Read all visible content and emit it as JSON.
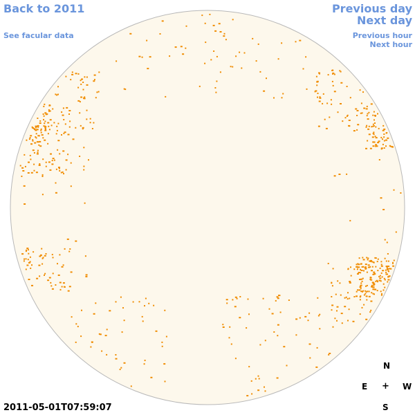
{
  "nav": {
    "back": "Back to 2011",
    "facular": "See facular data",
    "prev_day": "Previous day",
    "next_day": "Next day",
    "prev_hour": "Previous hour",
    "next_hour": "Next hour"
  },
  "timestamp": "2011-05-01T07:59:07",
  "compass": {
    "north": "N",
    "south": "S",
    "east": "E",
    "west": "W",
    "center": "+"
  },
  "colors": {
    "disk_fill": "#fdf8ec",
    "disk_stroke": "#b8b8b8",
    "facula": "#f08c00",
    "link": "#6a95dc"
  },
  "facula_regions": [
    {
      "lat": 0.45,
      "lon": -0.92,
      "spread": 0.12,
      "count": 140
    },
    {
      "lat": 0.3,
      "lon": -0.85,
      "spread": 0.14,
      "count": 90
    },
    {
      "lat": 0.55,
      "lon": -0.7,
      "spread": 0.15,
      "count": 70
    },
    {
      "lat": 0.4,
      "lon": 0.9,
      "spread": 0.1,
      "count": 110
    },
    {
      "lat": 0.55,
      "lon": 0.7,
      "spread": 0.16,
      "count": 70
    },
    {
      "lat": -0.35,
      "lon": 0.85,
      "spread": 0.1,
      "count": 150
    },
    {
      "lat": -0.45,
      "lon": 0.78,
      "spread": 0.16,
      "count": 80
    },
    {
      "lat": -0.3,
      "lon": -0.82,
      "spread": 0.12,
      "count": 55
    },
    {
      "lat": -0.7,
      "lon": -0.45,
      "spread": 0.25,
      "count": 60
    },
    {
      "lat": -0.72,
      "lon": 0.35,
      "spread": 0.28,
      "count": 70
    },
    {
      "lat": 0.85,
      "lon": -0.2,
      "spread": 0.3,
      "count": 45
    },
    {
      "lat": 0.85,
      "lon": 0.25,
      "spread": 0.3,
      "count": 45
    },
    {
      "lat": 0.0,
      "lon": -0.95,
      "spread": 0.35,
      "count": 35
    },
    {
      "lat": 0.0,
      "lon": 0.95,
      "spread": 0.35,
      "count": 35
    }
  ]
}
